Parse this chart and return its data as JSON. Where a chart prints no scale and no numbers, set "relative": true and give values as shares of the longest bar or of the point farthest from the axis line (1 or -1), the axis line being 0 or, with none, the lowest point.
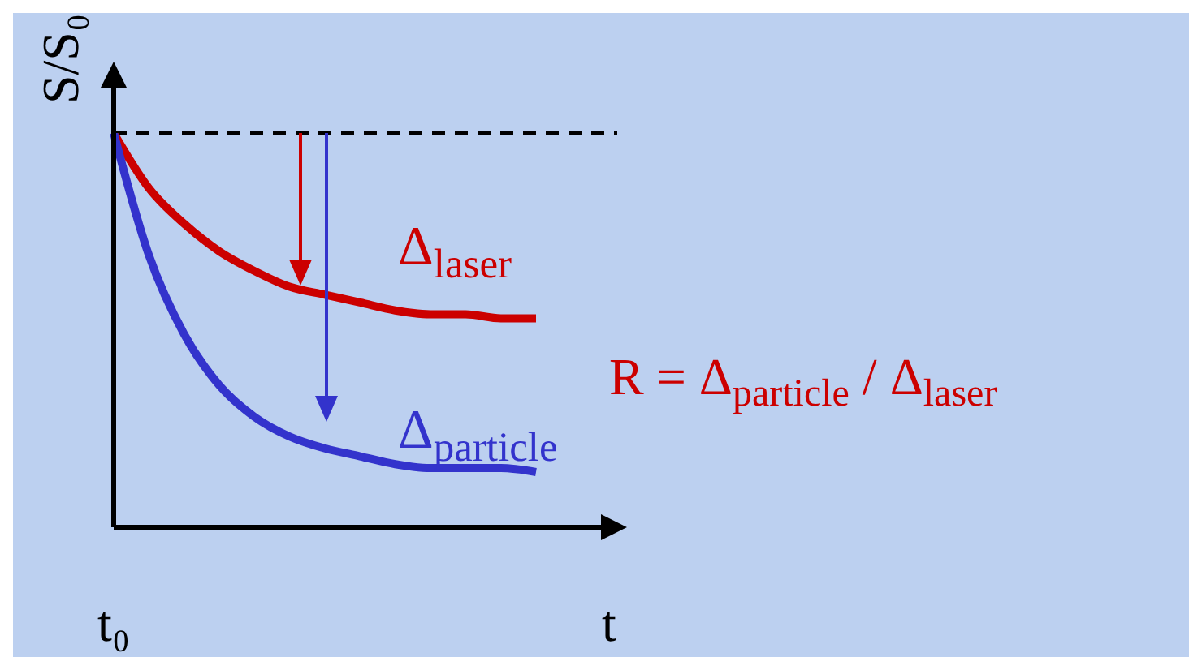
{
  "chart_data": {
    "type": "line",
    "relative": true,
    "ylabel": "S/S₀",
    "xlabel": "t",
    "categories": [
      null,
      null,
      null,
      null,
      null,
      null,
      null,
      null,
      null,
      null,
      null,
      null,
      null
    ],
    "series": [
      {
        "color": "#cc0000",
        "values": [
          1,
          0.86,
          0.77,
          0.7,
          0.65,
          0.61,
          0.59,
          0.57,
          0.55,
          0.54,
          0.54,
          0.53,
          0.53
        ]
      },
      {
        "color": "#3333cc",
        "values": [
          1,
          0.69,
          0.49,
          0.36,
          0.28,
          0.23,
          0.2,
          0.18,
          0.16,
          0.15,
          0.15,
          0.15,
          0.14
        ]
      }
    ],
    "ref_lines": [
      {
        "axis": "y",
        "value": 1,
        "color": "#000000",
        "line_style": "dashed"
      }
    ],
    "annotations": [
      "Δ$_{laser}$",
      "Δ$_{particle}$",
      "R = Δ$_{particle}$ / Δ$_{laser}$",
      "t₀"
    ],
    "marker": "none",
    "line_style": "solid"
  }
}
